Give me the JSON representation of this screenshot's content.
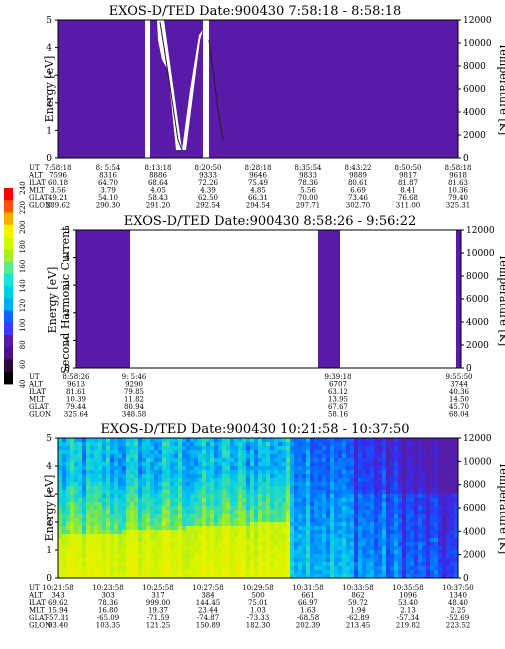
{
  "colors": {
    "background": "#ffffff",
    "purple": "#5a1aa8",
    "scale": [
      "#000000",
      "#2a0a3a",
      "#4b0f8f",
      "#5a1aa8",
      "#3a3aff",
      "#0a66ff",
      "#00aaff",
      "#00ccee",
      "#22dddd",
      "#55ee88",
      "#aaee22",
      "#ccff00",
      "#ffee00",
      "#ffaa00",
      "#ff5500",
      "#ff0000"
    ]
  },
  "colorbar": {
    "label": "Second Harmonic Current",
    "ticks": [
      "40",
      "60",
      "80",
      "100",
      "120",
      "140",
      "160",
      "180",
      "200",
      "220",
      "240"
    ]
  },
  "orbit_labels": [
    "UT",
    "ALT",
    "ILAT",
    "MLT",
    "GLAT",
    "GLON"
  ],
  "chart_data": [
    {
      "type": "heatmap",
      "title": "EXOS-D/TED   Date:900430   7:58:18 - 8:58:18",
      "ylabel": "Energy [eV]",
      "y2label": "Temperature [K]",
      "ylim": [
        0,
        5
      ],
      "yticks": [
        "0",
        "1",
        "2",
        "3",
        "4",
        "5"
      ],
      "y2lim": [
        0,
        12000
      ],
      "y2ticks": [
        "0",
        "2000",
        "4000",
        "6000",
        "8000",
        "10000",
        "12000"
      ],
      "orbit": {
        "UT": [
          "7:58:18",
          "8: 5:54",
          "8:13:18",
          "8:20:50",
          "8:28:18",
          "8:35:54",
          "8:43:22",
          "8:50:50",
          "8:58:18"
        ],
        "ALT": [
          "7596",
          "8316",
          "8886",
          "9333",
          "9646",
          "9833",
          "9889",
          "9817",
          "9618"
        ],
        "ILAT": [
          "60.18",
          "64.70",
          "68.64",
          "72.26",
          "75.49",
          "78.36",
          "80.61",
          "81.87",
          "81.63"
        ],
        "MLT": [
          "3.56",
          "3.79",
          "4.05",
          "4.39",
          "4.85",
          "5.56",
          "6.69",
          "8.41",
          "10.36"
        ],
        "GLAT": [
          "49.21",
          "54.10",
          "58.43",
          "62.50",
          "66.31",
          "70.00",
          "73.46",
          "76.68",
          "79.40"
        ],
        "GLON": [
          "289.62",
          "290.30",
          "291.20",
          "292.54",
          "294.54",
          "297.71",
          "302.70",
          "311.00",
          "325.31"
        ]
      }
    },
    {
      "type": "heatmap",
      "title": "EXOS-D/TED   Date:900430   8:58:26 - 9:56:22",
      "ylabel": "Energy [eV]",
      "y2label": "Temperature [K]",
      "ylim": [
        0,
        5
      ],
      "yticks": [
        "0",
        "1",
        "2",
        "3",
        "4",
        "5"
      ],
      "y2lim": [
        0,
        12000
      ],
      "y2ticks": [
        "0",
        "2000",
        "4000",
        "6000",
        "8000",
        "10000",
        "12000"
      ],
      "orbit": {
        "UT": [
          "8:58:26",
          "9: 5:46",
          "9:39:18",
          "9:55:50"
        ],
        "ALT": [
          "9613",
          "9290",
          "6707",
          "3744"
        ],
        "ILAT": [
          "81.61",
          "79.85",
          "63.12",
          "40.36"
        ],
        "MLT": [
          "10.39",
          "11.82",
          "13.95",
          "14.50"
        ],
        "GLAT": [
          "79.44",
          "80.94",
          "67.67",
          "45.70"
        ],
        "GLON": [
          "325.64",
          "348.58",
          "58.16",
          "68.04"
        ]
      }
    },
    {
      "type": "heatmap",
      "title": "EXOS-D/TED   Date:900430   10:21:58 - 10:37:50",
      "ylabel": "Energy [eV]",
      "y2label": "Temperature [K]",
      "ylim": [
        0,
        5
      ],
      "yticks": [
        "0",
        "1",
        "2",
        "3",
        "4",
        "5"
      ],
      "y2lim": [
        0,
        12000
      ],
      "y2ticks": [
        "0",
        "2000",
        "4000",
        "6000",
        "8000",
        "10000",
        "12000"
      ],
      "orbit": {
        "UT": [
          "10:21:58",
          "10:23:58",
          "10:25:58",
          "10:27:58",
          "10:29:58",
          "10:31:58",
          "10:33:58",
          "10:35:58",
          "10:37:50"
        ],
        "ALT": [
          "343",
          "303",
          "317",
          "384",
          "500",
          "661",
          "862",
          "1096",
          "1340"
        ],
        "ILAT": [
          "69.62",
          "78.36",
          "999.00",
          "144.45",
          "75.01",
          "66.97",
          "59.72",
          "53.40",
          "48.40"
        ],
        "MLT": [
          "15.94",
          "16.80",
          "19.37",
          "23.44",
          "1.03",
          "1.63",
          "1.94",
          "2.13",
          "2.25"
        ],
        "GLAT": [
          "-57.31",
          "-65.09",
          "-71.59",
          "-74.87",
          "-73.33",
          "-68.58",
          "-62.89",
          "-57.34",
          "-52.69"
        ],
        "GLON": [
          "93.40",
          "103.35",
          "121.25",
          "150.89",
          "182.30",
          "202.39",
          "213.45",
          "219.82",
          "223.52"
        ]
      }
    }
  ]
}
